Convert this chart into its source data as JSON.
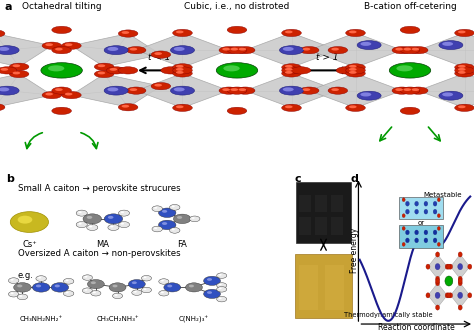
{
  "panel_a": {
    "title_left": "Octahedral tilting",
    "title_center": "Cubic, i.e., no distroted",
    "title_right": "B-cation off-cetering",
    "arrow_left_label": "t < 1",
    "arrow_right_label": "t > 1"
  },
  "panel_b": {
    "line1": "Small A caiton → perovskite strucures",
    "label_cs": "Cs⁺",
    "label_ma": "MA",
    "label_fa": "FA",
    "line2": "Oversized A caiton → non-perovskites",
    "label_eg": "e.g.",
    "formula1": "CH₃NH₂NH₂⁺",
    "formula2": "CH₃CH₂NH₃⁺",
    "formula3": "C(NH₂)₃⁺"
  },
  "panel_d": {
    "ylabel": "Free energy",
    "xlabel": "Reaction coordinate",
    "label_metastable": "Metastable",
    "label_thermo": "Thermodynamically stable",
    "curve_color": "#1a1a8c"
  },
  "panel_labels": {
    "a": "a",
    "b": "b",
    "c": "c",
    "d": "d"
  }
}
